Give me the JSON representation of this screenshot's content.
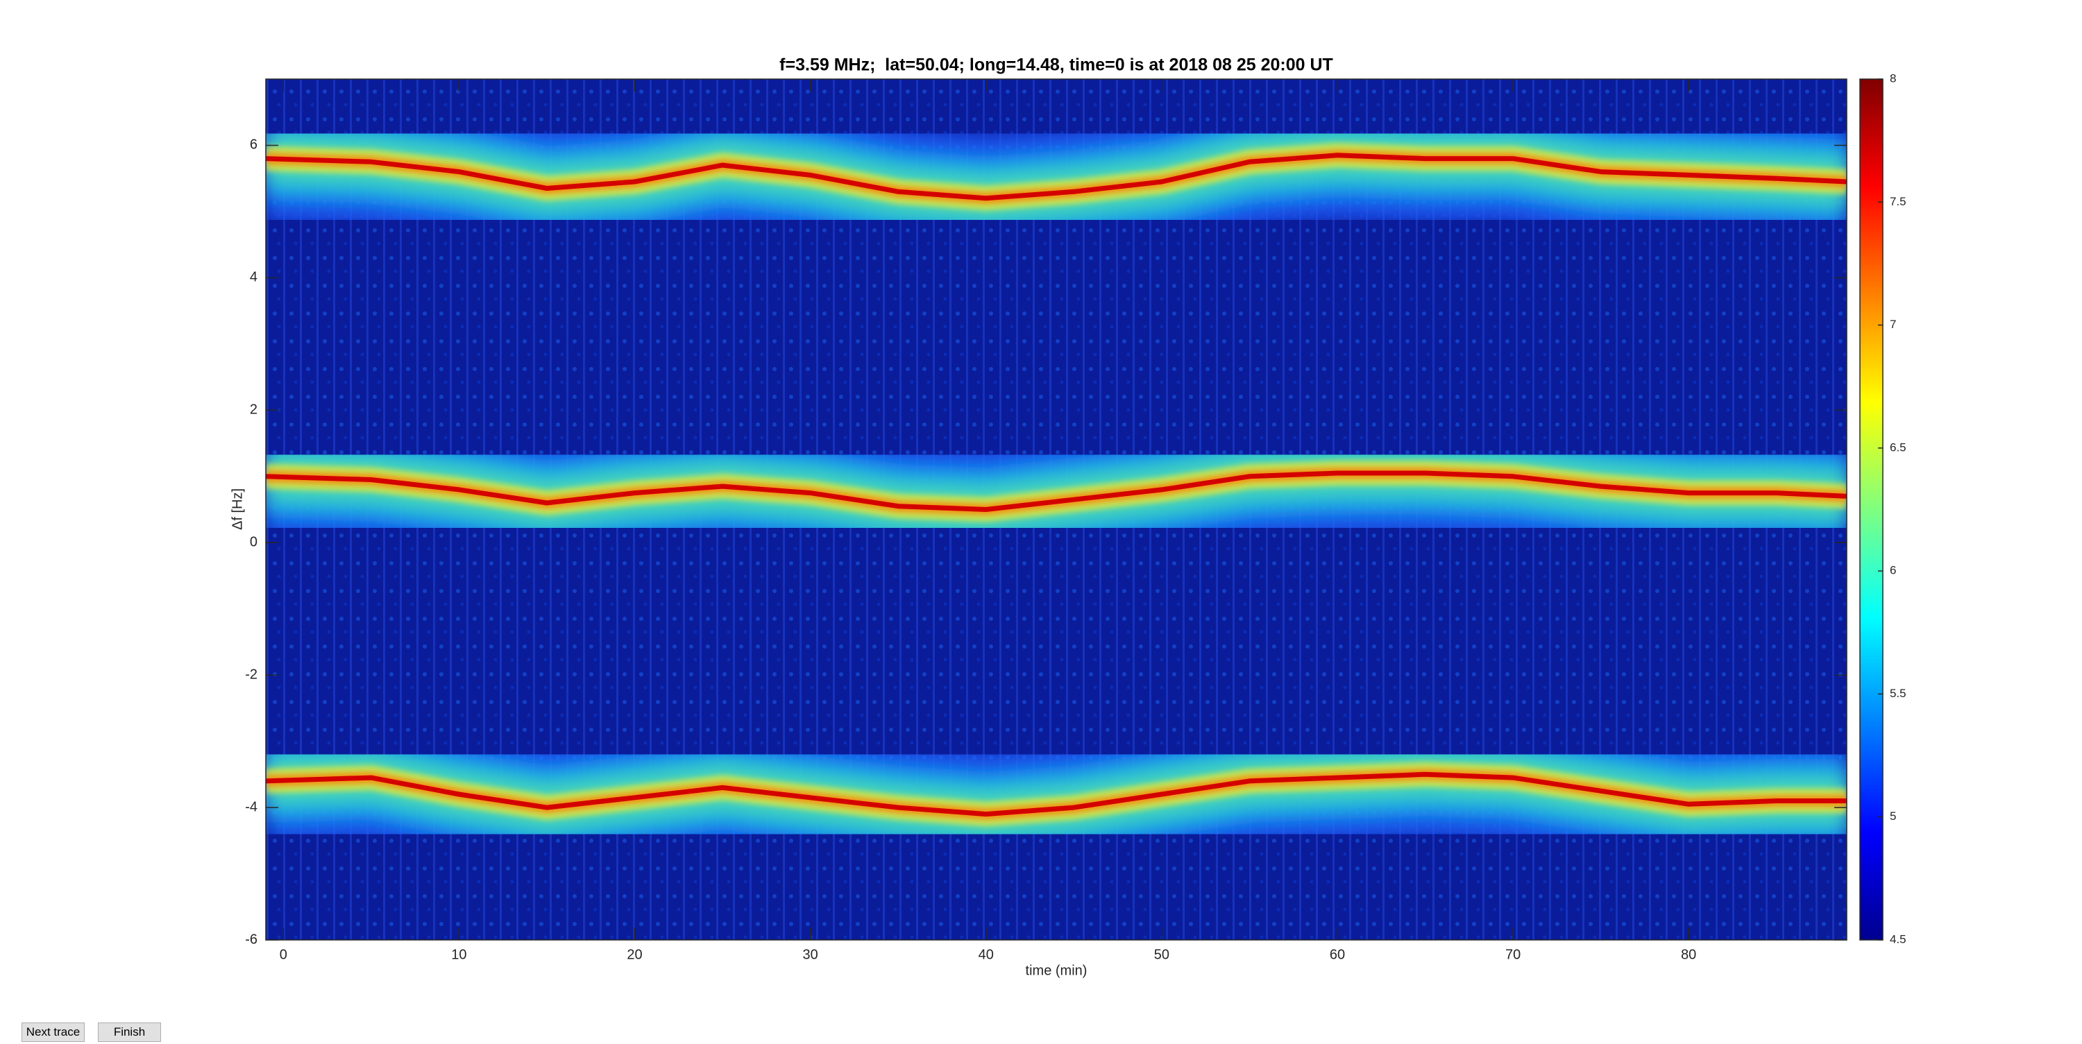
{
  "chart_data": {
    "type": "spectrogram",
    "title": "f=3.59 MHz;  lat=50.04; long=14.48, time=0 is at 2018 08 25 20:00 UT",
    "x_label": "time (min)",
    "y_label": "Δf [Hz]",
    "x": [
      -1,
      5,
      10,
      15,
      20,
      25,
      30,
      35,
      40,
      45,
      50,
      55,
      60,
      65,
      70,
      75,
      80,
      85,
      89
    ],
    "series": [
      {
        "color": "#d40000",
        "values": [
          5.8,
          5.75,
          5.6,
          5.35,
          5.45,
          5.7,
          5.55,
          5.3,
          5.2,
          5.3,
          5.45,
          5.75,
          5.85,
          5.8,
          5.8,
          5.6,
          5.55,
          5.5,
          5.45
        ]
      },
      {
        "color": "#d40000",
        "values": [
          1.0,
          0.95,
          0.8,
          0.6,
          0.75,
          0.85,
          0.75,
          0.55,
          0.5,
          0.65,
          0.8,
          1.0,
          1.05,
          1.05,
          1.0,
          0.85,
          0.75,
          0.75,
          0.7
        ]
      },
      {
        "color": "#d40000",
        "values": [
          -3.6,
          -3.55,
          -3.8,
          -4.0,
          -3.85,
          -3.7,
          -3.85,
          -4.0,
          -4.1,
          -4.0,
          -3.8,
          -3.6,
          -3.55,
          -3.5,
          -3.55,
          -3.75,
          -3.95,
          -3.9,
          -3.9
        ]
      }
    ],
    "xlim": [
      -1,
      89
    ],
    "xticks": [
      0,
      10,
      20,
      30,
      40,
      50,
      60,
      70,
      80
    ],
    "ylim": [
      -6,
      7
    ],
    "yticks": [
      -6,
      -4,
      -2,
      0,
      2,
      4,
      6
    ],
    "clim": [
      4.5,
      8
    ],
    "cticks": [
      4.5,
      5,
      5.5,
      6,
      6.5,
      7,
      7.5,
      8
    ],
    "colormap": "jet",
    "grid": false
  },
  "buttons": [
    "Next trace",
    "Finish"
  ]
}
